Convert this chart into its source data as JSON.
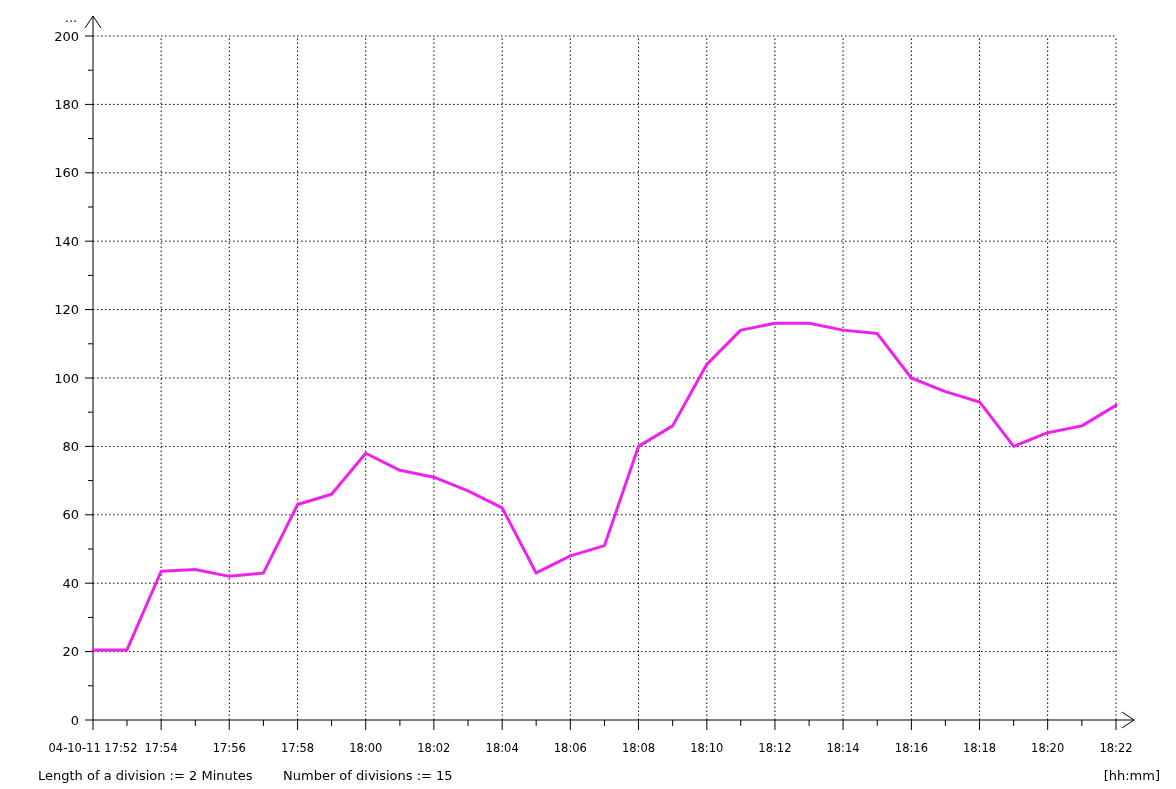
{
  "chart_data": {
    "type": "line",
    "ylabel": "...",
    "xlabel": "[hh:mm]",
    "annotations": [
      "Length of a division := 2 Minutes",
      "Number of divisions := 15"
    ],
    "x": [
      17.8667,
      17.8833,
      17.9,
      17.9167,
      17.9333,
      17.95,
      17.9667,
      17.9833,
      18,
      18.0167,
      18.0333,
      18.05,
      18.0667,
      18.0833,
      18.1,
      18.1167,
      18.1333,
      18.15,
      18.1667,
      18.1833,
      18.2,
      18.2167,
      18.2333,
      18.25,
      18.2667,
      18.2833,
      18.3,
      18.3167,
      18.3333,
      18.35,
      18.3667
    ],
    "series": [
      {
        "color": "#ee22ee",
        "values": [
          20.5,
          20.5,
          43.5,
          44,
          42,
          43,
          63,
          66,
          78,
          73,
          71,
          67,
          62,
          43,
          48,
          51,
          80,
          86,
          104,
          114,
          116,
          116,
          114,
          113,
          100,
          96,
          93,
          80,
          84,
          86,
          92
        ]
      }
    ],
    "xlim": [
      17.8667,
      18.3667
    ],
    "xticks": [
      {
        "value": 17.8667,
        "label": "04-10-11 17:52"
      },
      {
        "value": 17.8833,
        "label": null
      },
      {
        "value": 17.9,
        "label": "17:54"
      },
      {
        "value": 17.9167,
        "label": null
      },
      {
        "value": 17.9333,
        "label": "17:56"
      },
      {
        "value": 17.95,
        "label": null
      },
      {
        "value": 17.9667,
        "label": "17:58"
      },
      {
        "value": 17.9833,
        "label": null
      },
      {
        "value": 18,
        "label": "18:00"
      },
      {
        "value": 18.0167,
        "label": null
      },
      {
        "value": 18.0333,
        "label": "18:02"
      },
      {
        "value": 18.05,
        "label": null
      },
      {
        "value": 18.0667,
        "label": "18:04"
      },
      {
        "value": 18.0833,
        "label": null
      },
      {
        "value": 18.1,
        "label": "18:06"
      },
      {
        "value": 18.1167,
        "label": null
      },
      {
        "value": 18.1333,
        "label": "18:08"
      },
      {
        "value": 18.15,
        "label": null
      },
      {
        "value": 18.1667,
        "label": "18:10"
      },
      {
        "value": 18.1833,
        "label": null
      },
      {
        "value": 18.2,
        "label": "18:12"
      },
      {
        "value": 18.2167,
        "label": null
      },
      {
        "value": 18.2333,
        "label": "18:14"
      },
      {
        "value": 18.25,
        "label": null
      },
      {
        "value": 18.2667,
        "label": "18:16"
      },
      {
        "value": 18.2833,
        "label": null
      },
      {
        "value": 18.3,
        "label": "18:18"
      },
      {
        "value": 18.3167,
        "label": null
      },
      {
        "value": 18.3333,
        "label": "18:20"
      },
      {
        "value": 18.35,
        "label": null
      },
      {
        "value": 18.3667,
        "label": "18:22"
      }
    ],
    "ylim": [
      0,
      200
    ],
    "yticks": [
      0,
      {
        "value": 10,
        "label": null
      },
      20,
      {
        "value": 30,
        "label": null
      },
      40,
      {
        "value": 50,
        "label": null
      },
      60,
      {
        "value": 70,
        "label": null
      },
      80,
      {
        "value": 90,
        "label": null
      },
      100,
      {
        "value": 110,
        "label": null
      },
      120,
      {
        "value": 130,
        "label": null
      },
      140,
      {
        "value": 150,
        "label": null
      },
      160,
      {
        "value": 170,
        "label": null
      },
      180,
      {
        "value": 190,
        "label": null
      },
      200
    ],
    "grid": true,
    "marker": "none",
    "line_style": "solid"
  }
}
